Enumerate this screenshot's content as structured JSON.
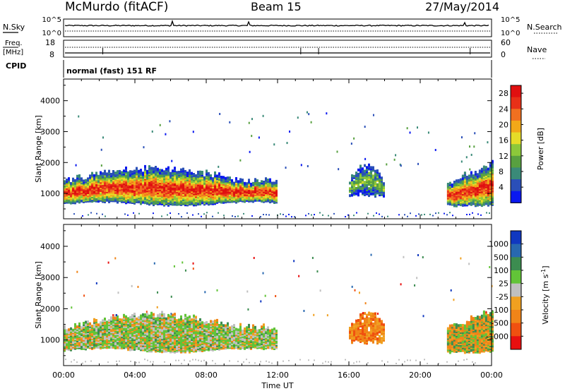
{
  "header": {
    "station": "McMurdo (fitACF)",
    "beam": "Beam 15",
    "date": "27/May/2014"
  },
  "top_panels": {
    "nsky_label": "N.Sky",
    "nsearch_label": "N.Search",
    "nsky_ticks": [
      "10^5",
      "10^0"
    ],
    "nsearch_ticks": [
      "10^5",
      "10^0"
    ],
    "freq_label_1": "Freq.",
    "freq_label_2": "[MHz]",
    "freq_ticks": [
      "18",
      "8"
    ],
    "nave_label": "Nave",
    "nave_ticks": [
      "60",
      "0"
    ],
    "cpid_label": "CPID",
    "cpid_text": "normal (fast) 151 RF"
  },
  "chart_data": [
    {
      "type": "heatmap",
      "title": "",
      "xlabel": "Time UT",
      "ylabel": "Slant Range [km]",
      "x_ticks": [
        "00:00",
        "04:00",
        "08:00",
        "12:00",
        "16:00",
        "20:00",
        "00:00"
      ],
      "x_range_hours": [
        0,
        24
      ],
      "y_ticks": [
        1000,
        2000,
        3000,
        4000
      ],
      "y_range_km": [
        180,
        4700
      ],
      "colorbar": {
        "label": "Power [dB]",
        "ticks": [
          "4",
          "8",
          "12",
          "16",
          "20",
          "24",
          "28"
        ],
        "range": [
          0,
          30
        ],
        "colors": [
          "#0a18f0",
          "#2a4fb8",
          "#3a8a78",
          "#58a040",
          "#8cc83a",
          "#e6dc28",
          "#f2a818",
          "#f07020",
          "#e83018",
          "#e01010"
        ]
      },
      "echo_regions": [
        {
          "t_start": 0.0,
          "t_end": 12.0,
          "range_min": 600,
          "range_max": 1700,
          "power_peak": 30
        },
        {
          "t_start": 16.0,
          "t_end": 18.0,
          "range_min": 850,
          "range_max": 1800,
          "power_peak": 14
        },
        {
          "t_start": 21.5,
          "t_end": 24.0,
          "range_min": 550,
          "range_max": 1900,
          "power_peak": 30
        }
      ]
    },
    {
      "type": "heatmap",
      "title": "",
      "xlabel": "Time UT",
      "ylabel": "Slant Range [km]",
      "x_ticks": [
        "00:00",
        "04:00",
        "08:00",
        "12:00",
        "16:00",
        "20:00",
        "00:00"
      ],
      "x_range_hours": [
        0,
        24
      ],
      "y_ticks": [
        1000,
        2000,
        3000,
        4000
      ],
      "y_range_km": [
        180,
        4700
      ],
      "colorbar": {
        "label": "Velocity [m s",
        "label_sup": "-1",
        "label_end": "]",
        "ticks": [
          "1000",
          "500",
          "100",
          "25",
          "-25",
          "-100",
          "-500",
          "-1000"
        ],
        "range": [
          -1000,
          1000
        ],
        "colors": [
          "#1038c0",
          "#2868b0",
          "#3c8c50",
          "#62c438",
          "#c0c0c0",
          "#f0a020",
          "#f08418",
          "#f05010",
          "#e81010"
        ]
      },
      "echo_regions": [
        {
          "t_start": 0.0,
          "t_end": 12.0,
          "range_min": 600,
          "range_max": 1700,
          "velocity_mean": 50
        },
        {
          "t_start": 16.0,
          "t_end": 18.0,
          "range_min": 850,
          "range_max": 1800,
          "velocity_mean": -200
        },
        {
          "t_start": 21.5,
          "t_end": 24.0,
          "range_min": 550,
          "range_max": 1900,
          "velocity_mean": -300
        }
      ]
    }
  ]
}
